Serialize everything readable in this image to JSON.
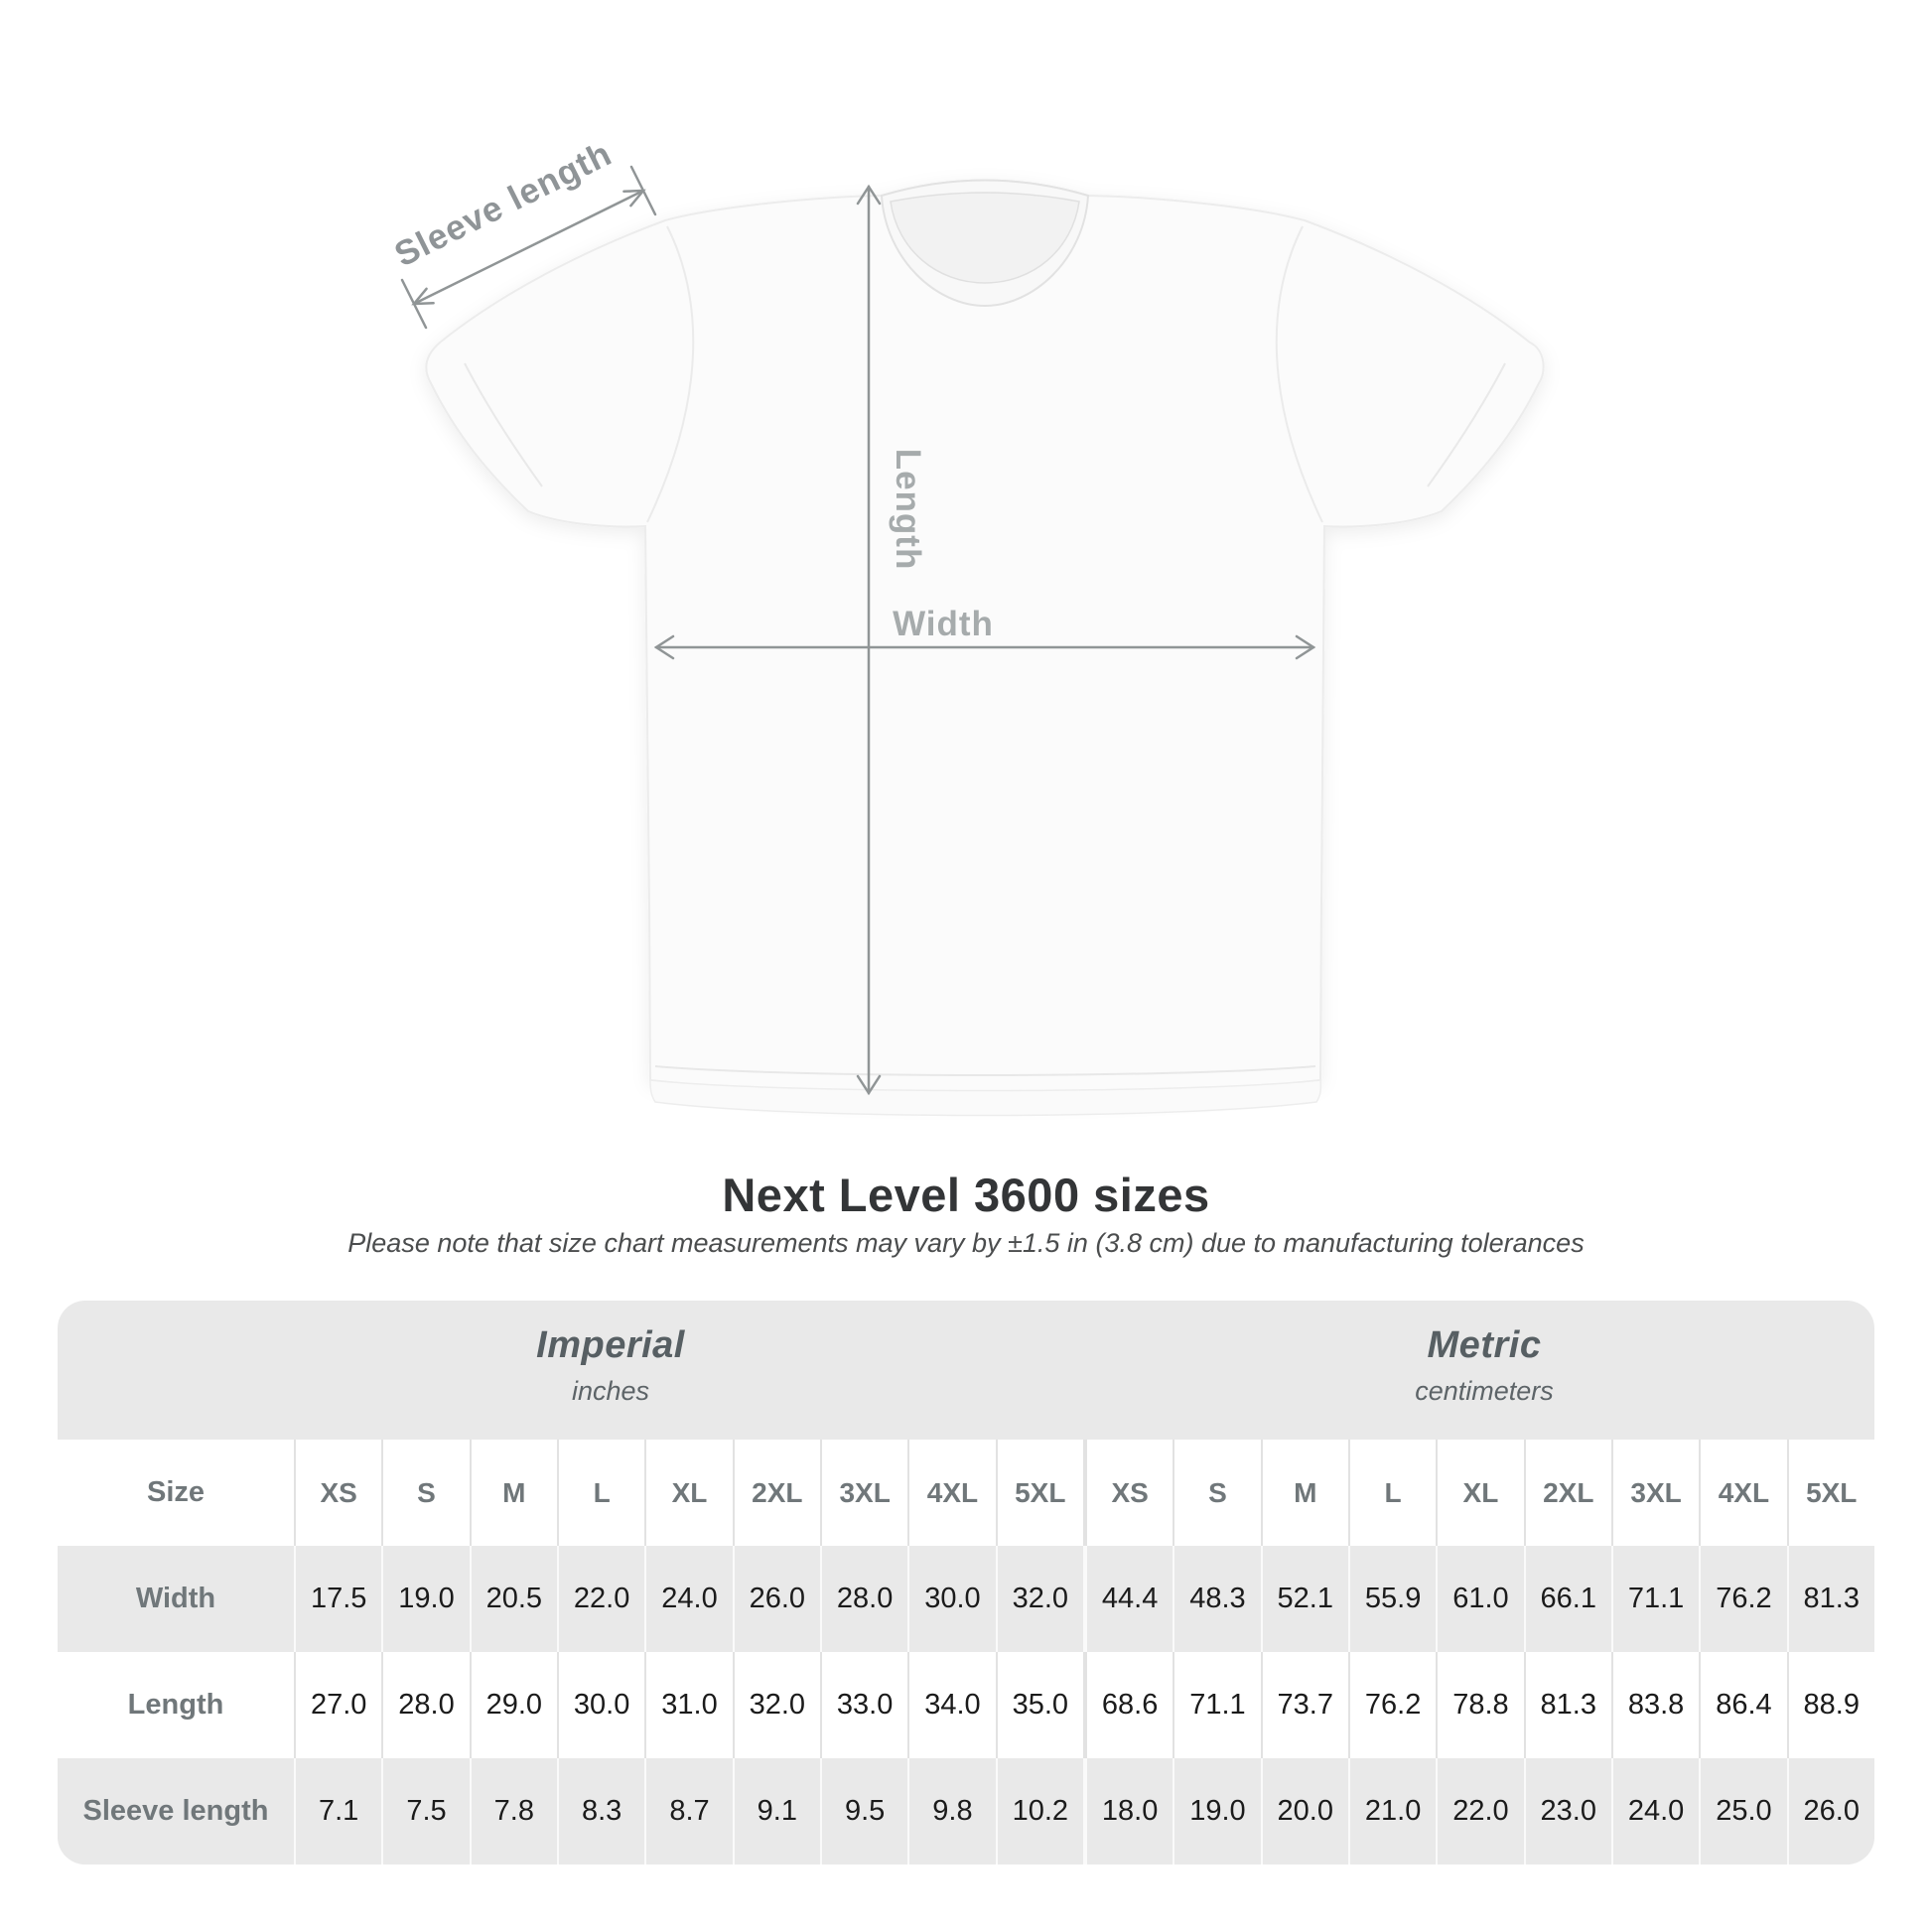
{
  "figure": {
    "sleeve_label": "Sleeve length",
    "length_label": "Length",
    "width_label": "Width"
  },
  "title": "Next Level 3600 sizes",
  "note": "Please note that size chart measurements may vary by ±1.5 in (3.8 cm) due to manufacturing tolerances",
  "chart_data": {
    "type": "table",
    "title": "Next Level 3600 sizes",
    "unit_groups": [
      {
        "label": "Imperial",
        "unit": "inches"
      },
      {
        "label": "Metric",
        "unit": "centimeters"
      }
    ],
    "size_header_label": "Size",
    "size_columns_imperial": [
      "XS",
      "S",
      "M",
      "L",
      "XL",
      "2XL",
      "3XL",
      "4XL",
      "5XL"
    ],
    "size_columns_metric": [
      "XS",
      "S",
      "M",
      "L",
      "XL",
      "2XL",
      "3XL",
      "4XL",
      "5XL"
    ],
    "rows": [
      {
        "label": "Width",
        "imperial": [
          "17.5",
          "19.0",
          "20.5",
          "22.0",
          "24.0",
          "26.0",
          "28.0",
          "30.0",
          "32.0"
        ],
        "metric": [
          "44.4",
          "48.3",
          "52.1",
          "55.9",
          "61.0",
          "66.1",
          "71.1",
          "76.2",
          "81.3"
        ]
      },
      {
        "label": "Length",
        "imperial": [
          "27.0",
          "28.0",
          "29.0",
          "30.0",
          "31.0",
          "32.0",
          "33.0",
          "34.0",
          "35.0"
        ],
        "metric": [
          "68.6",
          "71.1",
          "73.7",
          "76.2",
          "78.8",
          "81.3",
          "83.8",
          "86.4",
          "88.9"
        ]
      },
      {
        "label": "Sleeve length",
        "imperial": [
          "7.1",
          "7.5",
          "7.8",
          "8.3",
          "8.7",
          "9.1",
          "9.5",
          "9.8",
          "10.2"
        ],
        "metric": [
          "18.0",
          "19.0",
          "20.0",
          "21.0",
          "22.0",
          "23.0",
          "24.0",
          "25.0",
          "26.0"
        ]
      }
    ]
  },
  "colors": {
    "table_bg": "#e9e9e9",
    "row_white": "#ffffff",
    "value_text": "#1b1b1b",
    "label_text": "#70777a",
    "dimension_line": "#909596",
    "dimension_label": "#a6abac"
  }
}
